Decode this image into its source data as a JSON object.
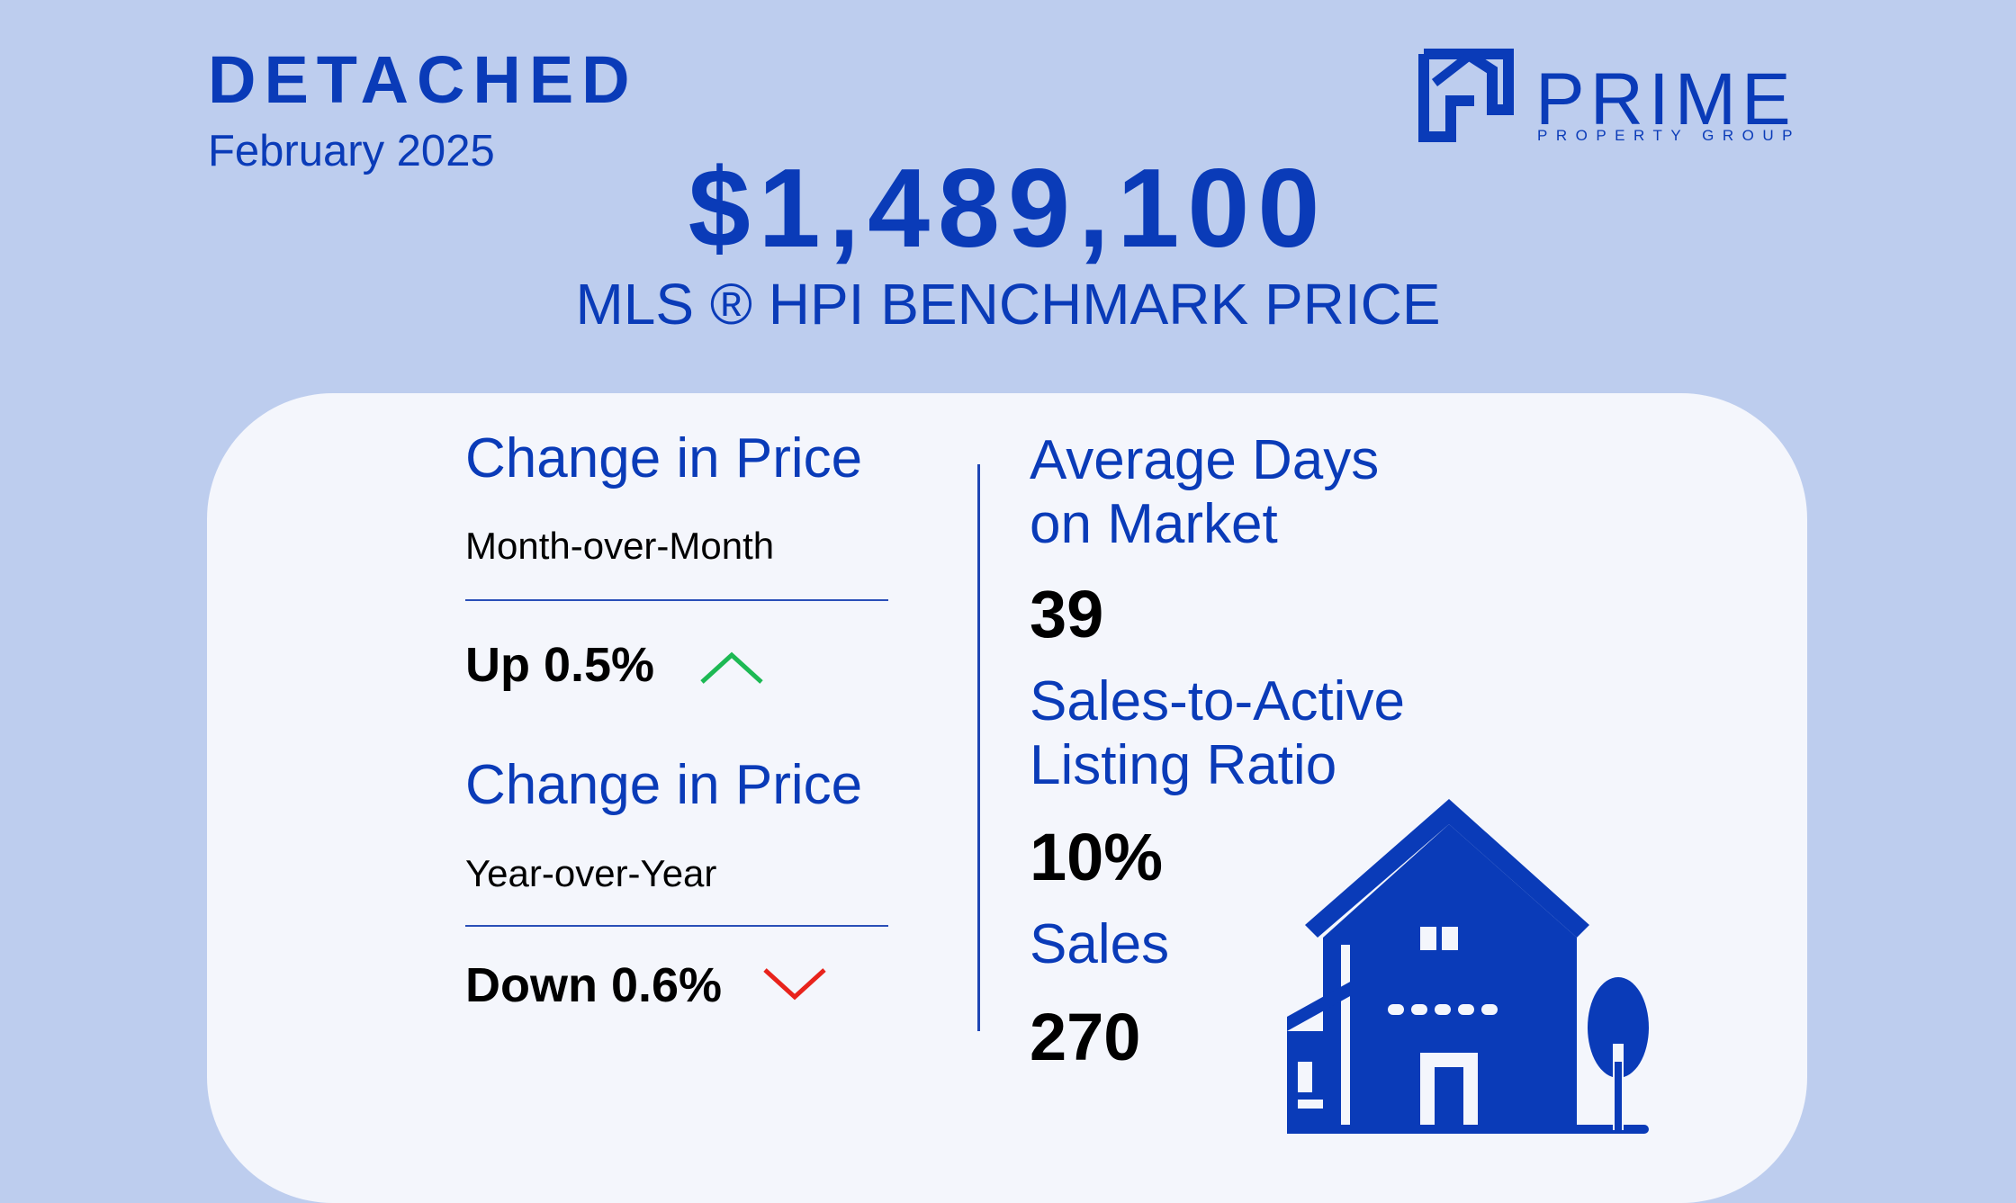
{
  "header": {
    "property_type": "DETACHED",
    "period": "February 2025"
  },
  "logo": {
    "word": "PRIME",
    "tagline": "PROPERTY GROUP",
    "icon": "house-outline-icon"
  },
  "benchmark": {
    "price": "$1,489,100",
    "label": "MLS ®  HPI BENCHMARK PRICE"
  },
  "price_change": [
    {
      "title": "Change in Price",
      "period": "Month-over-Month",
      "value": "Up 0.5%",
      "direction": "up",
      "arrow_color": "#1db954",
      "icon": "chevron-up-icon"
    },
    {
      "title": "Change in Price",
      "period": "Year-over-Year",
      "value": "Down 0.6%",
      "direction": "down",
      "arrow_color": "#e8231c",
      "icon": "chevron-down-icon"
    }
  ],
  "metrics": {
    "days_on_market": {
      "title_line1": "Average Days",
      "title_line2": "on Market",
      "value": "39"
    },
    "sales_to_active": {
      "title_line1": "Sales-to-Active",
      "title_line2": "Listing Ratio",
      "value": "10%"
    },
    "sales": {
      "title": "Sales",
      "value": "270"
    }
  },
  "illustration": {
    "icon": "house-with-tree-icon"
  },
  "colors": {
    "background": "#bdcdee",
    "card": "#f4f6fc",
    "accent": "#0a3bb8",
    "up": "#1db954",
    "down": "#e8231c"
  }
}
